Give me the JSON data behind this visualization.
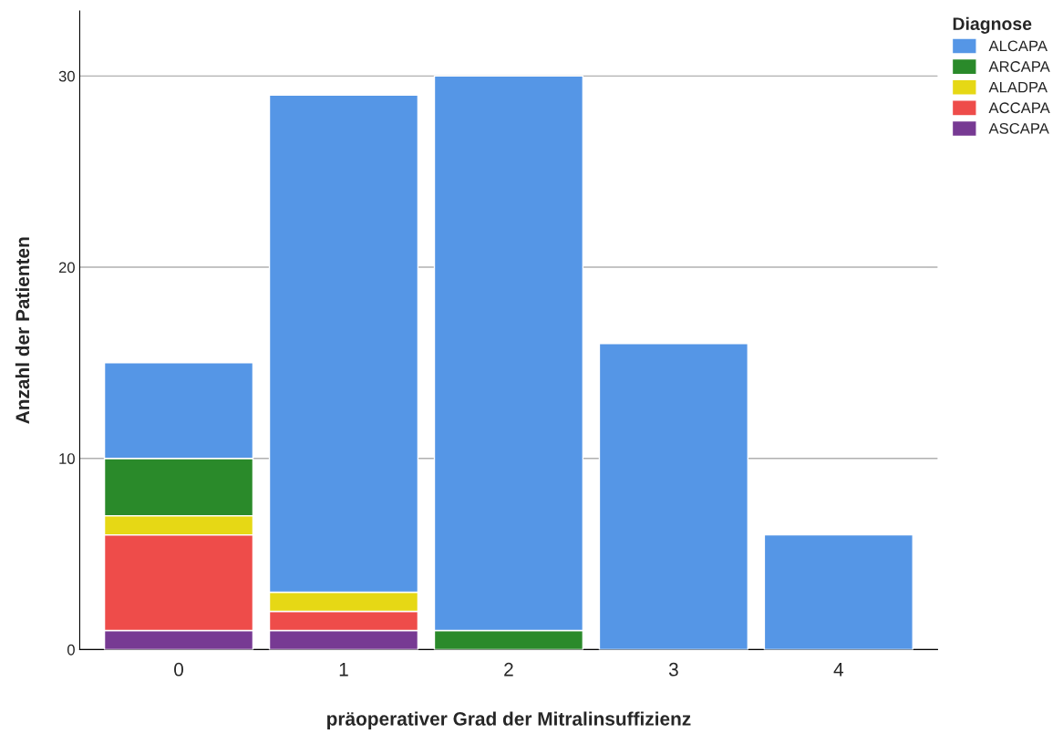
{
  "chart_data": {
    "type": "bar",
    "stacked": true,
    "xlabel": "präoperativer Grad der Mitralinsuffizienz",
    "ylabel": "Anzahl der Patienten",
    "legend_title": "Diagnose",
    "categories": [
      "0",
      "1",
      "2",
      "3",
      "4"
    ],
    "series": [
      {
        "name": "ASCAPA",
        "color": "#773a93",
        "values": [
          1,
          1,
          null,
          null,
          null
        ]
      },
      {
        "name": "ACCAPA",
        "color": "#ee4c4a",
        "values": [
          5,
          1,
          null,
          null,
          null
        ]
      },
      {
        "name": "ALADPA",
        "color": "#e6d815",
        "values": [
          1,
          1,
          null,
          null,
          null
        ]
      },
      {
        "name": "ARCAPA",
        "color": "#2a8a2a",
        "values": [
          3,
          null,
          1,
          null,
          null
        ]
      },
      {
        "name": "ALCAPA",
        "color": "#5596e6",
        "values": [
          5,
          26,
          29,
          16,
          6
        ]
      }
    ],
    "ylim": [
      0,
      33.4
    ],
    "yticks": [
      0,
      10,
      20,
      30
    ],
    "grid": "y",
    "legend": "top right"
  }
}
